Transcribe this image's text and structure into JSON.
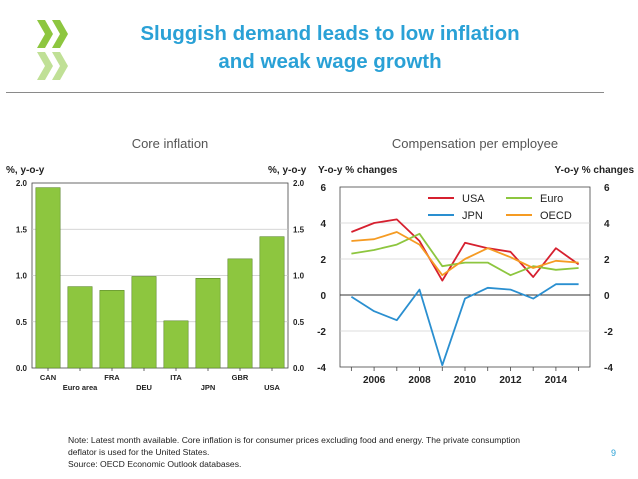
{
  "slide": {
    "title_line1": "Sluggish demand leads to low inflation",
    "title_line2": "and weak wage growth",
    "page_number": "9"
  },
  "brand": {
    "logo_color": "#8dc63f",
    "title_color": "#2aa1d6"
  },
  "note": {
    "line1": "Note: Latest month available. Core inflation is for consumer prices excluding food and energy. The private consumption",
    "line2": "deflator is used for the United States.",
    "line3": "Source: OECD Economic Outlook databases."
  },
  "chart_data": [
    {
      "type": "bar",
      "title": "Core inflation",
      "ylabel_left": "%, y-o-y",
      "ylabel_right": "%, y-o-y",
      "ylim": [
        0,
        2.0
      ],
      "yticks": [
        "0.0",
        "0.5",
        "1.0",
        "1.5",
        "2.0"
      ],
      "categories": [
        "CAN",
        "Euro area",
        "FRA",
        "DEU",
        "ITA",
        "JPN",
        "GBR",
        "USA"
      ],
      "values": [
        1.95,
        0.88,
        0.84,
        0.99,
        0.51,
        0.97,
        1.18,
        1.42
      ],
      "bar_color": "#8dc63f",
      "grid": true
    },
    {
      "type": "line",
      "title": "Compensation per employee",
      "ylabel_left": "Y-o-y % changes",
      "ylabel_right": "Y-o-y % changes",
      "ylim": [
        -4,
        6
      ],
      "yticks": [
        "-4",
        "-2",
        "0",
        "2",
        "4",
        "6"
      ],
      "xlim": [
        2004.5,
        2015.5
      ],
      "xticks": [
        "2006",
        "2008",
        "2010",
        "2012",
        "2014"
      ],
      "x": [
        2005,
        2006,
        2007,
        2008,
        2009,
        2010,
        2011,
        2012,
        2013,
        2014,
        2015
      ],
      "legend_location": "top",
      "series": [
        {
          "name": "USA",
          "color": "#d6202f",
          "values": [
            3.5,
            4.0,
            4.2,
            3.0,
            0.8,
            2.9,
            2.6,
            2.4,
            1.0,
            2.6,
            1.7
          ]
        },
        {
          "name": "Euro",
          "color": "#8dc63f",
          "values": [
            2.3,
            2.5,
            2.8,
            3.4,
            1.6,
            1.8,
            1.8,
            1.1,
            1.6,
            1.4,
            1.5
          ]
        },
        {
          "name": "JPN",
          "color": "#2a8fd0",
          "values": [
            -0.1,
            -0.9,
            -1.4,
            0.3,
            -3.9,
            -0.2,
            0.4,
            0.3,
            -0.2,
            0.6,
            0.6
          ]
        },
        {
          "name": "OECD",
          "color": "#f59b23",
          "values": [
            3.0,
            3.1,
            3.5,
            2.8,
            1.1,
            2.0,
            2.6,
            2.1,
            1.5,
            1.9,
            1.8
          ]
        }
      ],
      "grid": true
    }
  ]
}
